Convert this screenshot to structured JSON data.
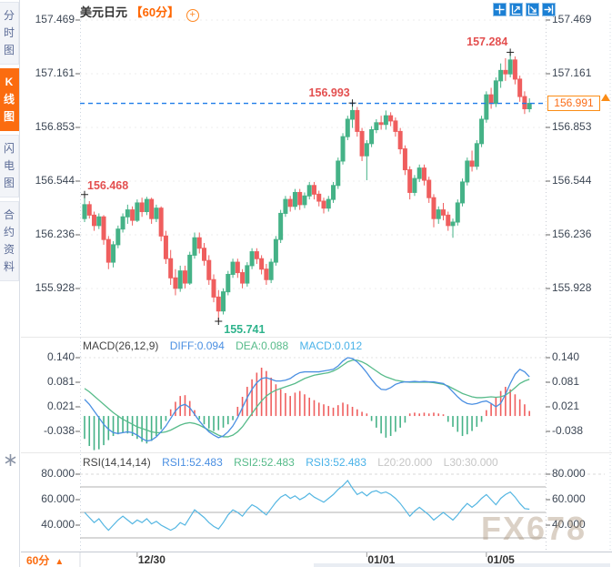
{
  "header": {
    "title": "美元日元",
    "period": "【60分】"
  },
  "sidebar": {
    "tabs": [
      {
        "label": "分时图",
        "active": false
      },
      {
        "label": "K线图",
        "active": true
      },
      {
        "label": "闪电图",
        "active": false
      },
      {
        "label": "合约资料",
        "active": false
      }
    ]
  },
  "toolbar": {
    "icons": [
      "crosshair",
      "zoom-axis-in",
      "zoom-axis-out",
      "exit-right"
    ]
  },
  "colors": {
    "up": "#45b287",
    "down": "#ef5e5e",
    "diff_line": "#4a8fe2",
    "dea_line": "#57bb8a",
    "rsi_line": "#54b6e2",
    "last_price_line": "#1f7ce8",
    "accent_orange": "#fb6c10",
    "annotation_high": "#e34f4f",
    "annotation_low": "#2eb38c"
  },
  "price_box": {
    "value": "156.991"
  },
  "bottom": {
    "period": "60分",
    "arrow": "▲"
  },
  "watermark": "FX678",
  "chart_data": [
    {
      "type": "candlestick",
      "title": "美元日元 60分 K线图",
      "y_axis_labels": [
        "157.469",
        "157.161",
        "156.853",
        "156.544",
        "156.236",
        "155.928"
      ],
      "y_top": 157.469,
      "y_step": 0.308,
      "last_price": 156.991,
      "annotations": [
        {
          "index": 0,
          "price": 156.468,
          "label": "156.468",
          "color": "#e34f4f",
          "pos": "above-right"
        },
        {
          "index": 28,
          "price": 155.741,
          "label": "155.741",
          "color": "#2eb38c",
          "pos": "below-right"
        },
        {
          "index": 56,
          "price": 156.993,
          "label": "156.993",
          "color": "#e34f4f",
          "pos": "above-left"
        },
        {
          "index": 89,
          "price": 157.284,
          "label": "157.284",
          "color": "#e34f4f",
          "pos": "above-left"
        }
      ],
      "x_ticks": [
        {
          "label": "12/30",
          "index": 11
        },
        {
          "label": "01/01",
          "index": 59
        },
        {
          "label": "01/05",
          "index": 84
        }
      ],
      "ohlc": [
        [
          156.33,
          156.468,
          156.31,
          156.41
        ],
        [
          156.41,
          156.43,
          156.33,
          156.35
        ],
        [
          156.35,
          156.37,
          156.26,
          156.29
        ],
        [
          156.29,
          156.36,
          156.27,
          156.34
        ],
        [
          156.34,
          156.35,
          156.18,
          156.21
        ],
        [
          156.21,
          156.23,
          156.04,
          156.08
        ],
        [
          156.08,
          156.2,
          156.05,
          156.18
        ],
        [
          156.18,
          156.29,
          156.16,
          156.27
        ],
        [
          156.27,
          156.36,
          156.25,
          156.34
        ],
        [
          156.34,
          156.41,
          156.3,
          156.38
        ],
        [
          156.38,
          156.4,
          156.29,
          156.32
        ],
        [
          156.32,
          156.44,
          156.31,
          156.42
        ],
        [
          156.42,
          156.45,
          156.34,
          156.37
        ],
        [
          156.37,
          156.455,
          156.35,
          156.44
        ],
        [
          156.44,
          156.45,
          156.3,
          156.33
        ],
        [
          156.33,
          156.41,
          156.31,
          156.39
        ],
        [
          156.39,
          156.4,
          156.2,
          156.23
        ],
        [
          156.23,
          156.26,
          156.07,
          156.1
        ],
        [
          156.1,
          156.15,
          155.95,
          155.99
        ],
        [
          155.99,
          156.04,
          155.89,
          155.93
        ],
        [
          155.93,
          156.06,
          155.91,
          156.03
        ],
        [
          156.03,
          156.06,
          155.93,
          155.96
        ],
        [
          155.96,
          156.14,
          155.95,
          156.12
        ],
        [
          156.12,
          156.25,
          156.1,
          156.22
        ],
        [
          156.22,
          156.25,
          156.13,
          156.16
        ],
        [
          156.16,
          156.19,
          156.06,
          156.09
        ],
        [
          156.09,
          156.12,
          155.95,
          155.98
        ],
        [
          155.98,
          156.01,
          155.85,
          155.88
        ],
        [
          155.88,
          155.92,
          155.741,
          155.8
        ],
        [
          155.8,
          155.93,
          155.78,
          155.91
        ],
        [
          155.91,
          156.03,
          155.89,
          156.01
        ],
        [
          156.01,
          156.1,
          155.99,
          156.08
        ],
        [
          156.08,
          156.1,
          155.99,
          156.02
        ],
        [
          156.02,
          156.04,
          155.93,
          155.96
        ],
        [
          155.96,
          156.08,
          155.94,
          156.06
        ],
        [
          156.06,
          156.16,
          156.04,
          156.14
        ],
        [
          156.14,
          156.16,
          156.07,
          156.1
        ],
        [
          156.1,
          156.12,
          156.01,
          156.04
        ],
        [
          156.04,
          156.07,
          155.95,
          155.98
        ],
        [
          155.98,
          156.1,
          155.96,
          156.08
        ],
        [
          156.08,
          156.23,
          156.06,
          156.21
        ],
        [
          156.21,
          156.38,
          156.19,
          156.36
        ],
        [
          156.36,
          156.46,
          156.34,
          156.44
        ],
        [
          156.44,
          156.46,
          156.37,
          156.4
        ],
        [
          156.4,
          156.5,
          156.38,
          156.48
        ],
        [
          156.48,
          156.5,
          156.38,
          156.41
        ],
        [
          156.41,
          156.48,
          156.39,
          156.46
        ],
        [
          156.46,
          156.54,
          156.44,
          156.52
        ],
        [
          156.52,
          156.54,
          156.44,
          156.47
        ],
        [
          156.47,
          156.49,
          156.4,
          156.43
        ],
        [
          156.43,
          156.45,
          156.36,
          156.39
        ],
        [
          156.39,
          156.46,
          156.37,
          156.44
        ],
        [
          156.44,
          156.54,
          156.42,
          156.52
        ],
        [
          156.52,
          156.68,
          156.5,
          156.66
        ],
        [
          156.66,
          156.82,
          156.64,
          156.8
        ],
        [
          156.8,
          156.92,
          156.78,
          156.9
        ],
        [
          156.9,
          156.993,
          156.85,
          156.95
        ],
        [
          156.95,
          156.97,
          156.8,
          156.83
        ],
        [
          156.83,
          156.85,
          156.66,
          156.69
        ],
        [
          156.69,
          156.78,
          156.55,
          156.76
        ],
        [
          156.76,
          156.86,
          156.74,
          156.84
        ],
        [
          156.84,
          156.9,
          156.82,
          156.88
        ],
        [
          156.88,
          156.92,
          156.84,
          156.87
        ],
        [
          156.87,
          156.95,
          156.84,
          156.92
        ],
        [
          156.92,
          156.94,
          156.86,
          156.89
        ],
        [
          156.89,
          156.91,
          156.8,
          156.83
        ],
        [
          156.83,
          156.85,
          156.7,
          156.73
        ],
        [
          156.73,
          156.75,
          156.58,
          156.61
        ],
        [
          156.61,
          156.63,
          156.44,
          156.48
        ],
        [
          156.48,
          156.58,
          156.46,
          156.56
        ],
        [
          156.56,
          156.64,
          156.54,
          156.62
        ],
        [
          156.62,
          156.64,
          156.52,
          156.55
        ],
        [
          156.55,
          156.57,
          156.42,
          156.45
        ],
        [
          156.45,
          156.47,
          156.28,
          156.33
        ],
        [
          156.33,
          156.4,
          156.3,
          156.38
        ],
        [
          156.38,
          156.42,
          156.32,
          156.35
        ],
        [
          156.35,
          156.37,
          156.26,
          156.29
        ],
        [
          156.29,
          156.33,
          156.22,
          156.31
        ],
        [
          156.31,
          156.44,
          156.29,
          156.42
        ],
        [
          156.42,
          156.56,
          156.4,
          156.54
        ],
        [
          156.54,
          156.68,
          156.52,
          156.66
        ],
        [
          156.66,
          156.72,
          156.6,
          156.63
        ],
        [
          156.63,
          156.78,
          156.61,
          156.76
        ],
        [
          156.76,
          156.92,
          156.74,
          156.9
        ],
        [
          156.9,
          157.06,
          156.88,
          157.04
        ],
        [
          157.04,
          157.08,
          156.96,
          156.99
        ],
        [
          156.99,
          157.14,
          156.97,
          157.12
        ],
        [
          157.12,
          157.22,
          157.08,
          157.18
        ],
        [
          157.18,
          157.25,
          157.12,
          157.16
        ],
        [
          157.16,
          157.284,
          157.14,
          157.24
        ],
        [
          157.24,
          157.26,
          157.1,
          157.13
        ],
        [
          157.13,
          157.15,
          157.0,
          157.03
        ],
        [
          157.03,
          157.06,
          156.93,
          156.96
        ],
        [
          156.96,
          157.02,
          156.94,
          156.991
        ]
      ]
    },
    {
      "type": "macd",
      "title": "MACD(26,12,9)",
      "header": {
        "diff": "DIFF:0.094",
        "dea": "DEA:0.088",
        "macd": "MACD:0.012"
      },
      "y_axis_labels": [
        "0.140",
        "0.081",
        "0.021",
        "-0.038"
      ],
      "diff": [
        0.04,
        0.028,
        0.012,
        -0.004,
        -0.02,
        -0.032,
        -0.04,
        -0.042,
        -0.04,
        -0.038,
        -0.04,
        -0.046,
        -0.054,
        -0.06,
        -0.058,
        -0.05,
        -0.038,
        -0.024,
        -0.006,
        0.012,
        0.024,
        0.028,
        0.02,
        0.004,
        -0.012,
        -0.026,
        -0.038,
        -0.046,
        -0.052,
        -0.048,
        -0.038,
        -0.024,
        -0.004,
        0.02,
        0.044,
        0.064,
        0.08,
        0.09,
        0.092,
        0.088,
        0.084,
        0.084,
        0.086,
        0.09,
        0.098,
        0.104,
        0.106,
        0.106,
        0.106,
        0.106,
        0.108,
        0.11,
        0.112,
        0.12,
        0.132,
        0.14,
        0.138,
        0.13,
        0.118,
        0.104,
        0.088,
        0.074,
        0.064,
        0.063,
        0.068,
        0.076,
        0.08,
        0.082,
        0.082,
        0.083,
        0.082,
        0.083,
        0.082,
        0.082,
        0.08,
        0.078,
        0.07,
        0.058,
        0.046,
        0.036,
        0.03,
        0.028,
        0.03,
        0.034,
        0.036,
        0.03,
        0.022,
        0.03,
        0.052,
        0.078,
        0.1,
        0.112,
        0.106,
        0.094
      ],
      "dea": [
        0.066,
        0.058,
        0.048,
        0.038,
        0.028,
        0.018,
        0.008,
        0.0,
        -0.008,
        -0.014,
        -0.02,
        -0.026,
        -0.03,
        -0.034,
        -0.038,
        -0.04,
        -0.04,
        -0.038,
        -0.034,
        -0.028,
        -0.022,
        -0.018,
        -0.016,
        -0.018,
        -0.022,
        -0.028,
        -0.034,
        -0.04,
        -0.046,
        -0.05,
        -0.05,
        -0.046,
        -0.038,
        -0.026,
        -0.01,
        0.006,
        0.022,
        0.036,
        0.048,
        0.056,
        0.062,
        0.066,
        0.07,
        0.074,
        0.078,
        0.084,
        0.09,
        0.094,
        0.098,
        0.1,
        0.102,
        0.104,
        0.108,
        0.114,
        0.122,
        0.13,
        0.134,
        0.134,
        0.13,
        0.124,
        0.116,
        0.108,
        0.1,
        0.094,
        0.09,
        0.086,
        0.084,
        0.082,
        0.081,
        0.081,
        0.081,
        0.081,
        0.081,
        0.08,
        0.078,
        0.076,
        0.072,
        0.066,
        0.06,
        0.054,
        0.05,
        0.046,
        0.044,
        0.044,
        0.045,
        0.046,
        0.045,
        0.046,
        0.05,
        0.058,
        0.068,
        0.078,
        0.084,
        0.088
      ],
      "hist": [
        -0.055,
        -0.072,
        -0.082,
        -0.08,
        -0.07,
        -0.058,
        -0.048,
        -0.044,
        -0.04,
        -0.042,
        -0.048,
        -0.055,
        -0.062,
        -0.066,
        -0.06,
        -0.048,
        -0.032,
        -0.012,
        0.016,
        0.034,
        0.048,
        0.05,
        0.036,
        0.014,
        -0.008,
        -0.02,
        -0.03,
        -0.036,
        -0.034,
        -0.028,
        -0.02,
        -0.01,
        0.022,
        0.046,
        0.07,
        0.088,
        0.104,
        0.116,
        0.108,
        0.092,
        0.076,
        0.064,
        0.055,
        0.048,
        0.056,
        0.06,
        0.052,
        0.044,
        0.038,
        0.032,
        0.028,
        0.024,
        0.02,
        0.026,
        0.032,
        0.028,
        0.022,
        0.016,
        0.01,
        0.006,
        -0.012,
        -0.028,
        -0.042,
        -0.052,
        -0.048,
        -0.038,
        -0.028,
        -0.016,
        0.006,
        0.008,
        0.006,
        0.008,
        0.006,
        0.008,
        0.006,
        0.004,
        -0.014,
        -0.026,
        -0.038,
        -0.048,
        -0.044,
        -0.036,
        -0.026,
        -0.014,
        0.014,
        0.03,
        0.046,
        0.06,
        0.07,
        0.064,
        0.052,
        0.04,
        0.028,
        0.012
      ]
    },
    {
      "type": "line",
      "title": "RSI(14,14,14)",
      "header": {
        "rsi1": "RSI1:52.483",
        "rsi2": "RSI2:52.483",
        "rsi3": "RSI3:52.483",
        "l20": "L20:20.000",
        "l30": "L30:30.000"
      },
      "y_axis_labels": [
        "80.000",
        "60.000",
        "40.000"
      ],
      "hlines": [
        70,
        50,
        30
      ],
      "dashed_level": 80,
      "values": [
        50,
        46,
        42,
        45,
        40,
        36,
        40,
        44,
        47,
        44,
        41,
        44,
        42,
        45,
        41,
        43,
        40,
        38,
        36,
        38,
        42,
        40,
        46,
        52,
        49,
        46,
        42,
        39,
        37,
        42,
        48,
        52,
        50,
        47,
        52,
        56,
        54,
        51,
        48,
        53,
        58,
        62,
        64,
        61,
        63,
        60,
        62,
        65,
        62,
        60,
        58,
        61,
        64,
        68,
        71,
        75,
        69,
        64,
        66,
        63,
        66,
        67,
        65,
        66,
        64,
        61,
        57,
        52,
        47,
        51,
        54,
        51,
        48,
        44,
        47,
        50,
        47,
        44,
        48,
        53,
        57,
        54,
        57,
        61,
        64,
        60,
        56,
        61,
        64,
        66,
        62,
        57,
        53,
        52.5
      ]
    }
  ]
}
